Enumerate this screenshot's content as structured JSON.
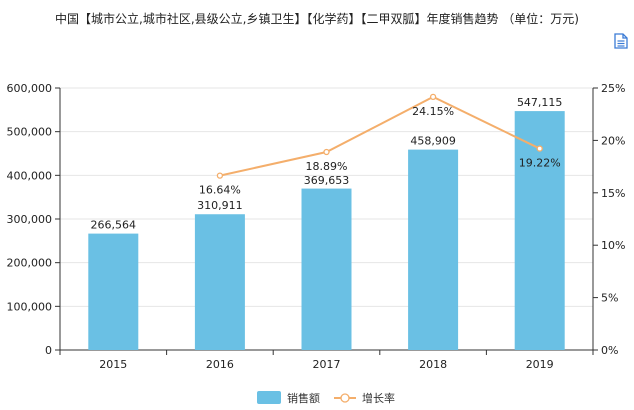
{
  "title": "中国【城市公立,城市社区,县级公立,乡镇卫生】【化学药】【二甲双胍】年度销售趋势 （单位：万元)",
  "toolbar": {
    "export_icon": "document-export-icon"
  },
  "colors": {
    "bar": "#6ac0e4",
    "line": "#f4ae6b",
    "axis": "#333333",
    "grid": "#e6e6e6"
  },
  "chart_data": {
    "type": "bar+line",
    "categories": [
      "2015",
      "2016",
      "2017",
      "2018",
      "2019"
    ],
    "series": [
      {
        "name": "销售额",
        "type": "bar",
        "axis": "left",
        "values": [
          266564,
          310911,
          369653,
          458909,
          547115
        ],
        "labels": [
          "266,564",
          "310,911",
          "369,653",
          "458,909",
          "547,115"
        ]
      },
      {
        "name": "增长率",
        "type": "line",
        "axis": "right",
        "values": [
          null,
          16.64,
          18.89,
          24.15,
          19.22
        ],
        "labels": [
          "",
          "16.64%",
          "18.89%",
          "24.15%",
          "19.22%"
        ]
      }
    ],
    "y_left": {
      "min": 0,
      "max": 600000,
      "ticks": [
        "0",
        "100,000",
        "200,000",
        "300,000",
        "400,000",
        "500,000",
        "600,000"
      ]
    },
    "y_right": {
      "min": 0,
      "max": 25,
      "ticks": [
        "0%",
        "5%",
        "10%",
        "15%",
        "20%",
        "25%"
      ]
    },
    "grid": true,
    "legend_position": "bottom-center"
  }
}
